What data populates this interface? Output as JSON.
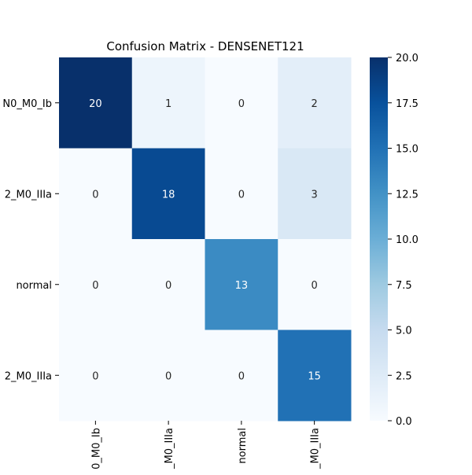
{
  "chart_data": {
    "type": "heatmap",
    "title": "Confusion Matrix - DENSENET121",
    "xlabel": "",
    "ylabel": "",
    "row_tick_labels": [
      "N0_M0_Ib",
      "2_M0_IIIa",
      "normal",
      "2_M0_IIIa"
    ],
    "col_tick_labels": [
      "0_M0_Ib",
      "_M0_IIIa",
      "normal",
      "_M0_IIIa"
    ],
    "matrix": [
      [
        20,
        1,
        0,
        2
      ],
      [
        0,
        18,
        0,
        3
      ],
      [
        0,
        0,
        13,
        0
      ],
      [
        0,
        0,
        0,
        15
      ]
    ],
    "colorbar": {
      "min": 0,
      "max": 20,
      "ticks": [
        "0.0",
        "2.5",
        "5.0",
        "7.5",
        "10.0",
        "12.5",
        "15.0",
        "17.5",
        "20.0"
      ]
    },
    "colormap": "Blues",
    "annotation_dark_color": "#262626",
    "annotation_light_color": "#ffffff"
  }
}
